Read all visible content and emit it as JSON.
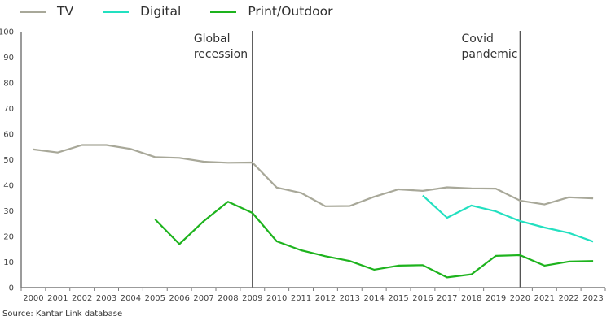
{
  "chart_data": {
    "type": "line",
    "title": "",
    "xlabel": "",
    "ylabel": "",
    "ylim": [
      0,
      100
    ],
    "yticks": [
      "0",
      "10",
      "20",
      "30",
      "40",
      "50",
      "60",
      "70",
      "80",
      "90",
      "100"
    ],
    "categories": [
      "2000",
      "2001",
      "2002",
      "2003",
      "2004",
      "2005",
      "2006",
      "2007",
      "2008",
      "2009",
      "2010",
      "2011",
      "2012",
      "2013",
      "2014",
      "2015",
      "2016",
      "2017",
      "2018",
      "2019",
      "2020",
      "2021",
      "2022",
      "2023"
    ],
    "grid": false,
    "legend_position": "top-left",
    "series": [
      {
        "name": "TV",
        "color": "#a8a899",
        "values": [
          54,
          52.8,
          55.7,
          55.7,
          54.2,
          51,
          50.7,
          49.2,
          48.8,
          48.9,
          39.1,
          37,
          31.8,
          31.9,
          35.5,
          38.4,
          37.8,
          39.2,
          38.8,
          38.7,
          34,
          32.5,
          35.3,
          34.9
        ]
      },
      {
        "name": "Digital",
        "color": "#22e0c0",
        "values": [
          null,
          null,
          null,
          null,
          null,
          null,
          null,
          null,
          null,
          null,
          null,
          null,
          null,
          null,
          null,
          null,
          36,
          27.3,
          32.1,
          29.8,
          26,
          23.5,
          21.4,
          18
        ]
      },
      {
        "name": "Print/Outdoor",
        "color": "#1db31d",
        "values": [
          null,
          null,
          null,
          null,
          null,
          26.7,
          17,
          26,
          33.6,
          29.2,
          18.1,
          14.6,
          12.3,
          10.4,
          7,
          8.6,
          8.8,
          4,
          5.2,
          12.4,
          12.7,
          8.6,
          10.2,
          10.4
        ]
      }
    ],
    "annotations": [
      {
        "label_lines": [
          "Global",
          "recession"
        ],
        "x": "2009"
      },
      {
        "label_lines": [
          "Covid",
          "pandemic"
        ],
        "x": "2020"
      }
    ]
  },
  "source": "Source: Kantar Link database"
}
